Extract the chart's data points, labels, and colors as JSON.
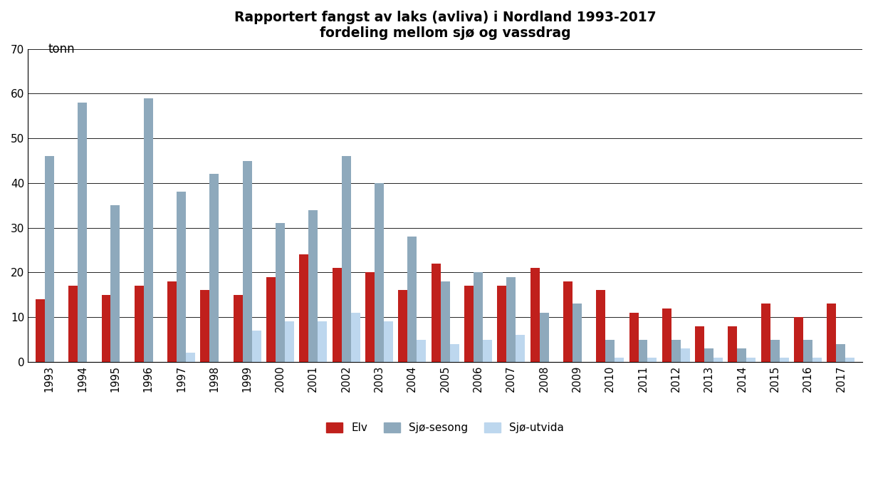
{
  "title_line1": "Rapportert fangst av laks (avliva) i Nordland 1993-2017",
  "title_line2": "fordeling mellom sjø og vassdrag",
  "ylabel": "tonn",
  "years": [
    1993,
    1994,
    1995,
    1996,
    1997,
    1998,
    1999,
    2000,
    2001,
    2002,
    2003,
    2004,
    2005,
    2006,
    2007,
    2008,
    2009,
    2010,
    2011,
    2012,
    2013,
    2014,
    2015,
    2016,
    2017
  ],
  "elv": [
    14,
    17,
    15,
    17,
    18,
    16,
    15,
    19,
    24,
    21,
    20,
    16,
    22,
    17,
    17,
    21,
    18,
    16,
    11,
    12,
    8,
    8,
    13,
    10,
    13
  ],
  "sjo_sesong": [
    46,
    58,
    35,
    59,
    38,
    42,
    45,
    31,
    34,
    46,
    40,
    28,
    18,
    20,
    19,
    11,
    13,
    5,
    5,
    5,
    3,
    3,
    5,
    5,
    4
  ],
  "sjo_utvida": [
    0,
    0,
    0,
    0,
    2,
    0,
    7,
    9,
    9,
    11,
    9,
    5,
    4,
    5,
    6,
    0,
    0,
    1,
    1,
    3,
    1,
    1,
    1,
    1,
    1
  ],
  "color_elv": "#C0201C",
  "color_sjo_sesong": "#8EA9BC",
  "color_sjo_utvida": "#BDD7EE",
  "ylim": [
    0,
    70
  ],
  "yticks": [
    0,
    10,
    20,
    30,
    40,
    50,
    60,
    70
  ],
  "legend_labels": [
    "Elv",
    "Sjø-sesong",
    "Sjø-utvida"
  ],
  "bar_width": 0.28
}
